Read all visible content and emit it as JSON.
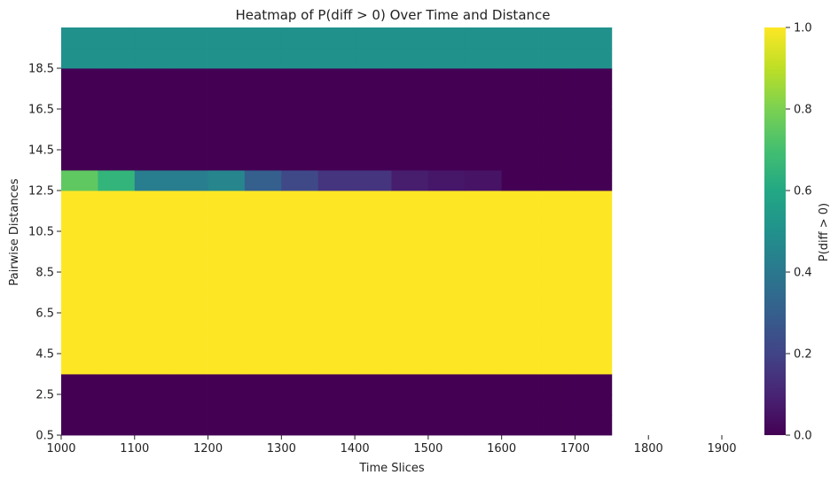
{
  "chart_data": {
    "type": "heatmap",
    "title": "Heatmap of P(diff > 0) Over Time and Distance",
    "xlabel": "Time Slices",
    "ylabel": "Pairwise Distances",
    "x_ticks": [
      1000,
      1100,
      1200,
      1300,
      1400,
      1500,
      1600,
      1700,
      1800,
      1900
    ],
    "y_ticks": [
      0.5,
      2.5,
      4.5,
      6.5,
      8.5,
      10.5,
      12.5,
      14.5,
      16.5,
      18.5
    ],
    "xlim": [
      1000,
      1900
    ],
    "ylim": [
      0.5,
      20.5
    ],
    "x_bin_width": 50,
    "y_bin_height": 1,
    "x_bins": [
      1000,
      1050,
      1100,
      1150,
      1200,
      1250,
      1300,
      1350,
      1400,
      1450,
      1500,
      1550,
      1600,
      1650,
      1700
    ],
    "y_bins": [
      1,
      2,
      3,
      4,
      5,
      6,
      7,
      8,
      9,
      10,
      11,
      12,
      13,
      14,
      15,
      16,
      17,
      18,
      19,
      20
    ],
    "values": [
      [
        0,
        0,
        0,
        0,
        0,
        0,
        0,
        0,
        0,
        0,
        0,
        0,
        0,
        0,
        0
      ],
      [
        0,
        0,
        0,
        0,
        0,
        0,
        0,
        0,
        0,
        0,
        0,
        0,
        0,
        0,
        0
      ],
      [
        0,
        0,
        0,
        0,
        0,
        0,
        0,
        0,
        0,
        0,
        0,
        0,
        0,
        0,
        0
      ],
      [
        1,
        1,
        1,
        1,
        1,
        1,
        1,
        1,
        1,
        1,
        1,
        1,
        1,
        1,
        1
      ],
      [
        1,
        1,
        1,
        1,
        1,
        1,
        1,
        1,
        1,
        1,
        1,
        1,
        1,
        1,
        1
      ],
      [
        1,
        1,
        1,
        1,
        1,
        1,
        1,
        1,
        1,
        1,
        1,
        1,
        1,
        1,
        1
      ],
      [
        1,
        1,
        1,
        1,
        1,
        1,
        1,
        1,
        1,
        1,
        1,
        1,
        1,
        1,
        1
      ],
      [
        1,
        1,
        1,
        1,
        1,
        1,
        1,
        1,
        1,
        1,
        1,
        1,
        1,
        1,
        1
      ],
      [
        1,
        1,
        1,
        1,
        1,
        1,
        1,
        1,
        1,
        1,
        1,
        1,
        1,
        1,
        1
      ],
      [
        1,
        1,
        1,
        1,
        1,
        1,
        1,
        1,
        1,
        1,
        1,
        1,
        1,
        1,
        1
      ],
      [
        1,
        1,
        1,
        1,
        1,
        1,
        1,
        1,
        1,
        1,
        1,
        1,
        1,
        1,
        1
      ],
      [
        1,
        1,
        1,
        1,
        1,
        1,
        1,
        1,
        1,
        1,
        1,
        1,
        1,
        1,
        1
      ],
      [
        0.75,
        0.65,
        0.42,
        0.42,
        0.45,
        0.3,
        0.22,
        0.15,
        0.15,
        0.08,
        0.06,
        0.05,
        0,
        0,
        0
      ],
      [
        0,
        0,
        0,
        0,
        0,
        0,
        0,
        0,
        0,
        0,
        0,
        0,
        0,
        0,
        0
      ],
      [
        0,
        0,
        0,
        0,
        0,
        0,
        0,
        0,
        0,
        0,
        0,
        0,
        0,
        0,
        0
      ],
      [
        0,
        0,
        0,
        0,
        0,
        0,
        0,
        0,
        0,
        0,
        0,
        0,
        0,
        0,
        0
      ],
      [
        0,
        0,
        0,
        0,
        0,
        0,
        0,
        0,
        0,
        0,
        0,
        0,
        0,
        0,
        0
      ],
      [
        0,
        0,
        0,
        0,
        0,
        0,
        0,
        0,
        0,
        0,
        0,
        0,
        0,
        0,
        0
      ],
      [
        0.5,
        0.5,
        0.5,
        0.5,
        0.5,
        0.5,
        0.5,
        0.5,
        0.5,
        0.5,
        0.5,
        0.5,
        0.5,
        0.5,
        0.5
      ],
      [
        0.5,
        0.5,
        0.5,
        0.5,
        0.5,
        0.5,
        0.5,
        0.5,
        0.5,
        0.5,
        0.5,
        0.5,
        0.5,
        0.5,
        0.5
      ]
    ],
    "colorbar": {
      "label": "P(diff > 0)",
      "range": [
        0,
        1
      ],
      "ticks": [
        0.0,
        0.2,
        0.4,
        0.6,
        0.8,
        1.0
      ],
      "tick_labels": [
        "0.0",
        "0.2",
        "0.4",
        "0.6",
        "0.8",
        "1.0"
      ],
      "colormap": "viridis"
    },
    "grid": false
  }
}
